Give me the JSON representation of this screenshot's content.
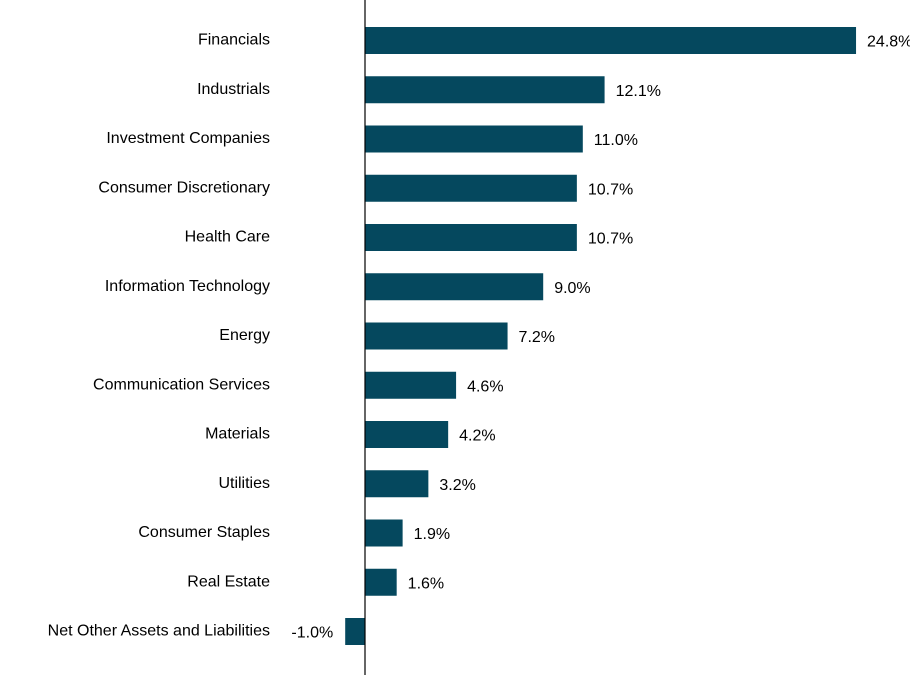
{
  "chart_data": {
    "type": "bar",
    "orientation": "horizontal",
    "categories": [
      "Financials",
      "Industrials",
      "Investment Companies",
      "Consumer Discretionary",
      "Health Care",
      "Information Technology",
      "Energy",
      "Communication Services",
      "Materials",
      "Utilities",
      "Consumer Staples",
      "Real Estate",
      "Net Other Assets and Liabilities"
    ],
    "values": [
      24.8,
      12.1,
      11.0,
      10.7,
      10.7,
      9.0,
      7.2,
      4.6,
      4.2,
      3.2,
      1.9,
      1.6,
      -1.0
    ],
    "value_labels": [
      "24.8%",
      "12.1%",
      "11.0%",
      "10.7%",
      "10.7%",
      "9.0%",
      "7.2%",
      "4.6%",
      "4.2%",
      "3.2%",
      "1.9%",
      "1.6%",
      "-1.0%"
    ],
    "bar_color": "#05485E",
    "grid": false,
    "legend": "none"
  }
}
